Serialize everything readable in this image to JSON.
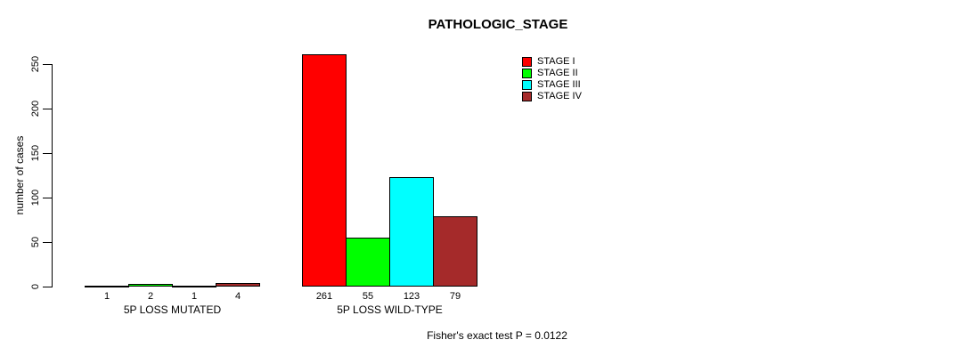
{
  "chart_data": {
    "type": "bar",
    "title": "PATHOLOGIC_STAGE",
    "ylabel": "number of cases",
    "xlabel": "",
    "ylim": [
      0,
      250
    ],
    "yticks": [
      0,
      50,
      100,
      150,
      200,
      250
    ],
    "grid": false,
    "legend_position": "top-right",
    "categories": [
      "5P LOSS MUTATED",
      "5P LOSS WILD-TYPE"
    ],
    "series": [
      {
        "name": "STAGE I",
        "color": "#FF0000",
        "values": [
          1,
          261
        ]
      },
      {
        "name": "STAGE II",
        "color": "#00FF00",
        "values": [
          2,
          55
        ]
      },
      {
        "name": "STAGE III",
        "color": "#00FFFF",
        "values": [
          1,
          123
        ]
      },
      {
        "name": "STAGE IV",
        "color": "#A52A2A",
        "values": [
          4,
          79
        ]
      }
    ],
    "bar_value_labels": [
      [
        "1",
        "2",
        "1",
        "4"
      ],
      [
        "261",
        "55",
        "123",
        "79"
      ]
    ],
    "annotation": "Fisher's exact test P = 0.0122"
  }
}
